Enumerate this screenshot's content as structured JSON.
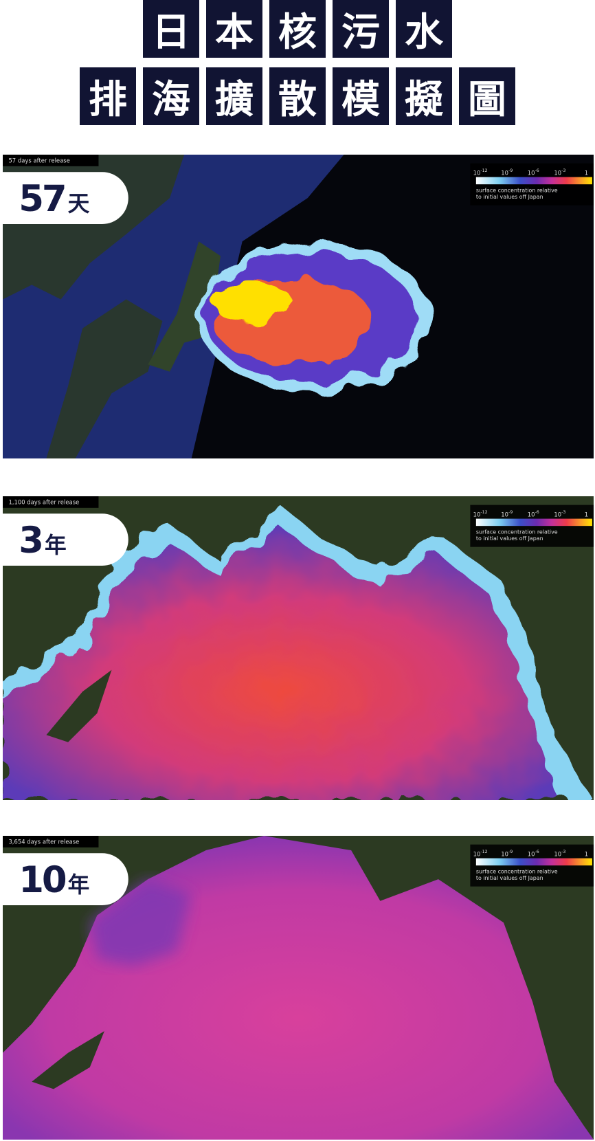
{
  "title": {
    "lines": [
      [
        "日",
        "本",
        "核",
        "污",
        "水"
      ],
      [
        "排",
        "海",
        "擴",
        "散",
        "模",
        "擬",
        "圖"
      ]
    ]
  },
  "legend": {
    "ticks": [
      {
        "base": "10",
        "exponent": "-12"
      },
      {
        "base": "10",
        "exponent": "-9"
      },
      {
        "base": "10",
        "exponent": "-6"
      },
      {
        "base": "10",
        "exponent": "-3"
      },
      {
        "base": "1"
      }
    ],
    "caption": [
      "surface concentration relative",
      "to initial values off Japan"
    ]
  },
  "panels": [
    {
      "caption": "57 days after release",
      "label": "57",
      "unit": "天"
    },
    {
      "caption": "1,100 days after release",
      "label": "3",
      "unit": "年"
    },
    {
      "caption": "3,654 days after release",
      "label": "10",
      "unit": "年"
    }
  ]
}
